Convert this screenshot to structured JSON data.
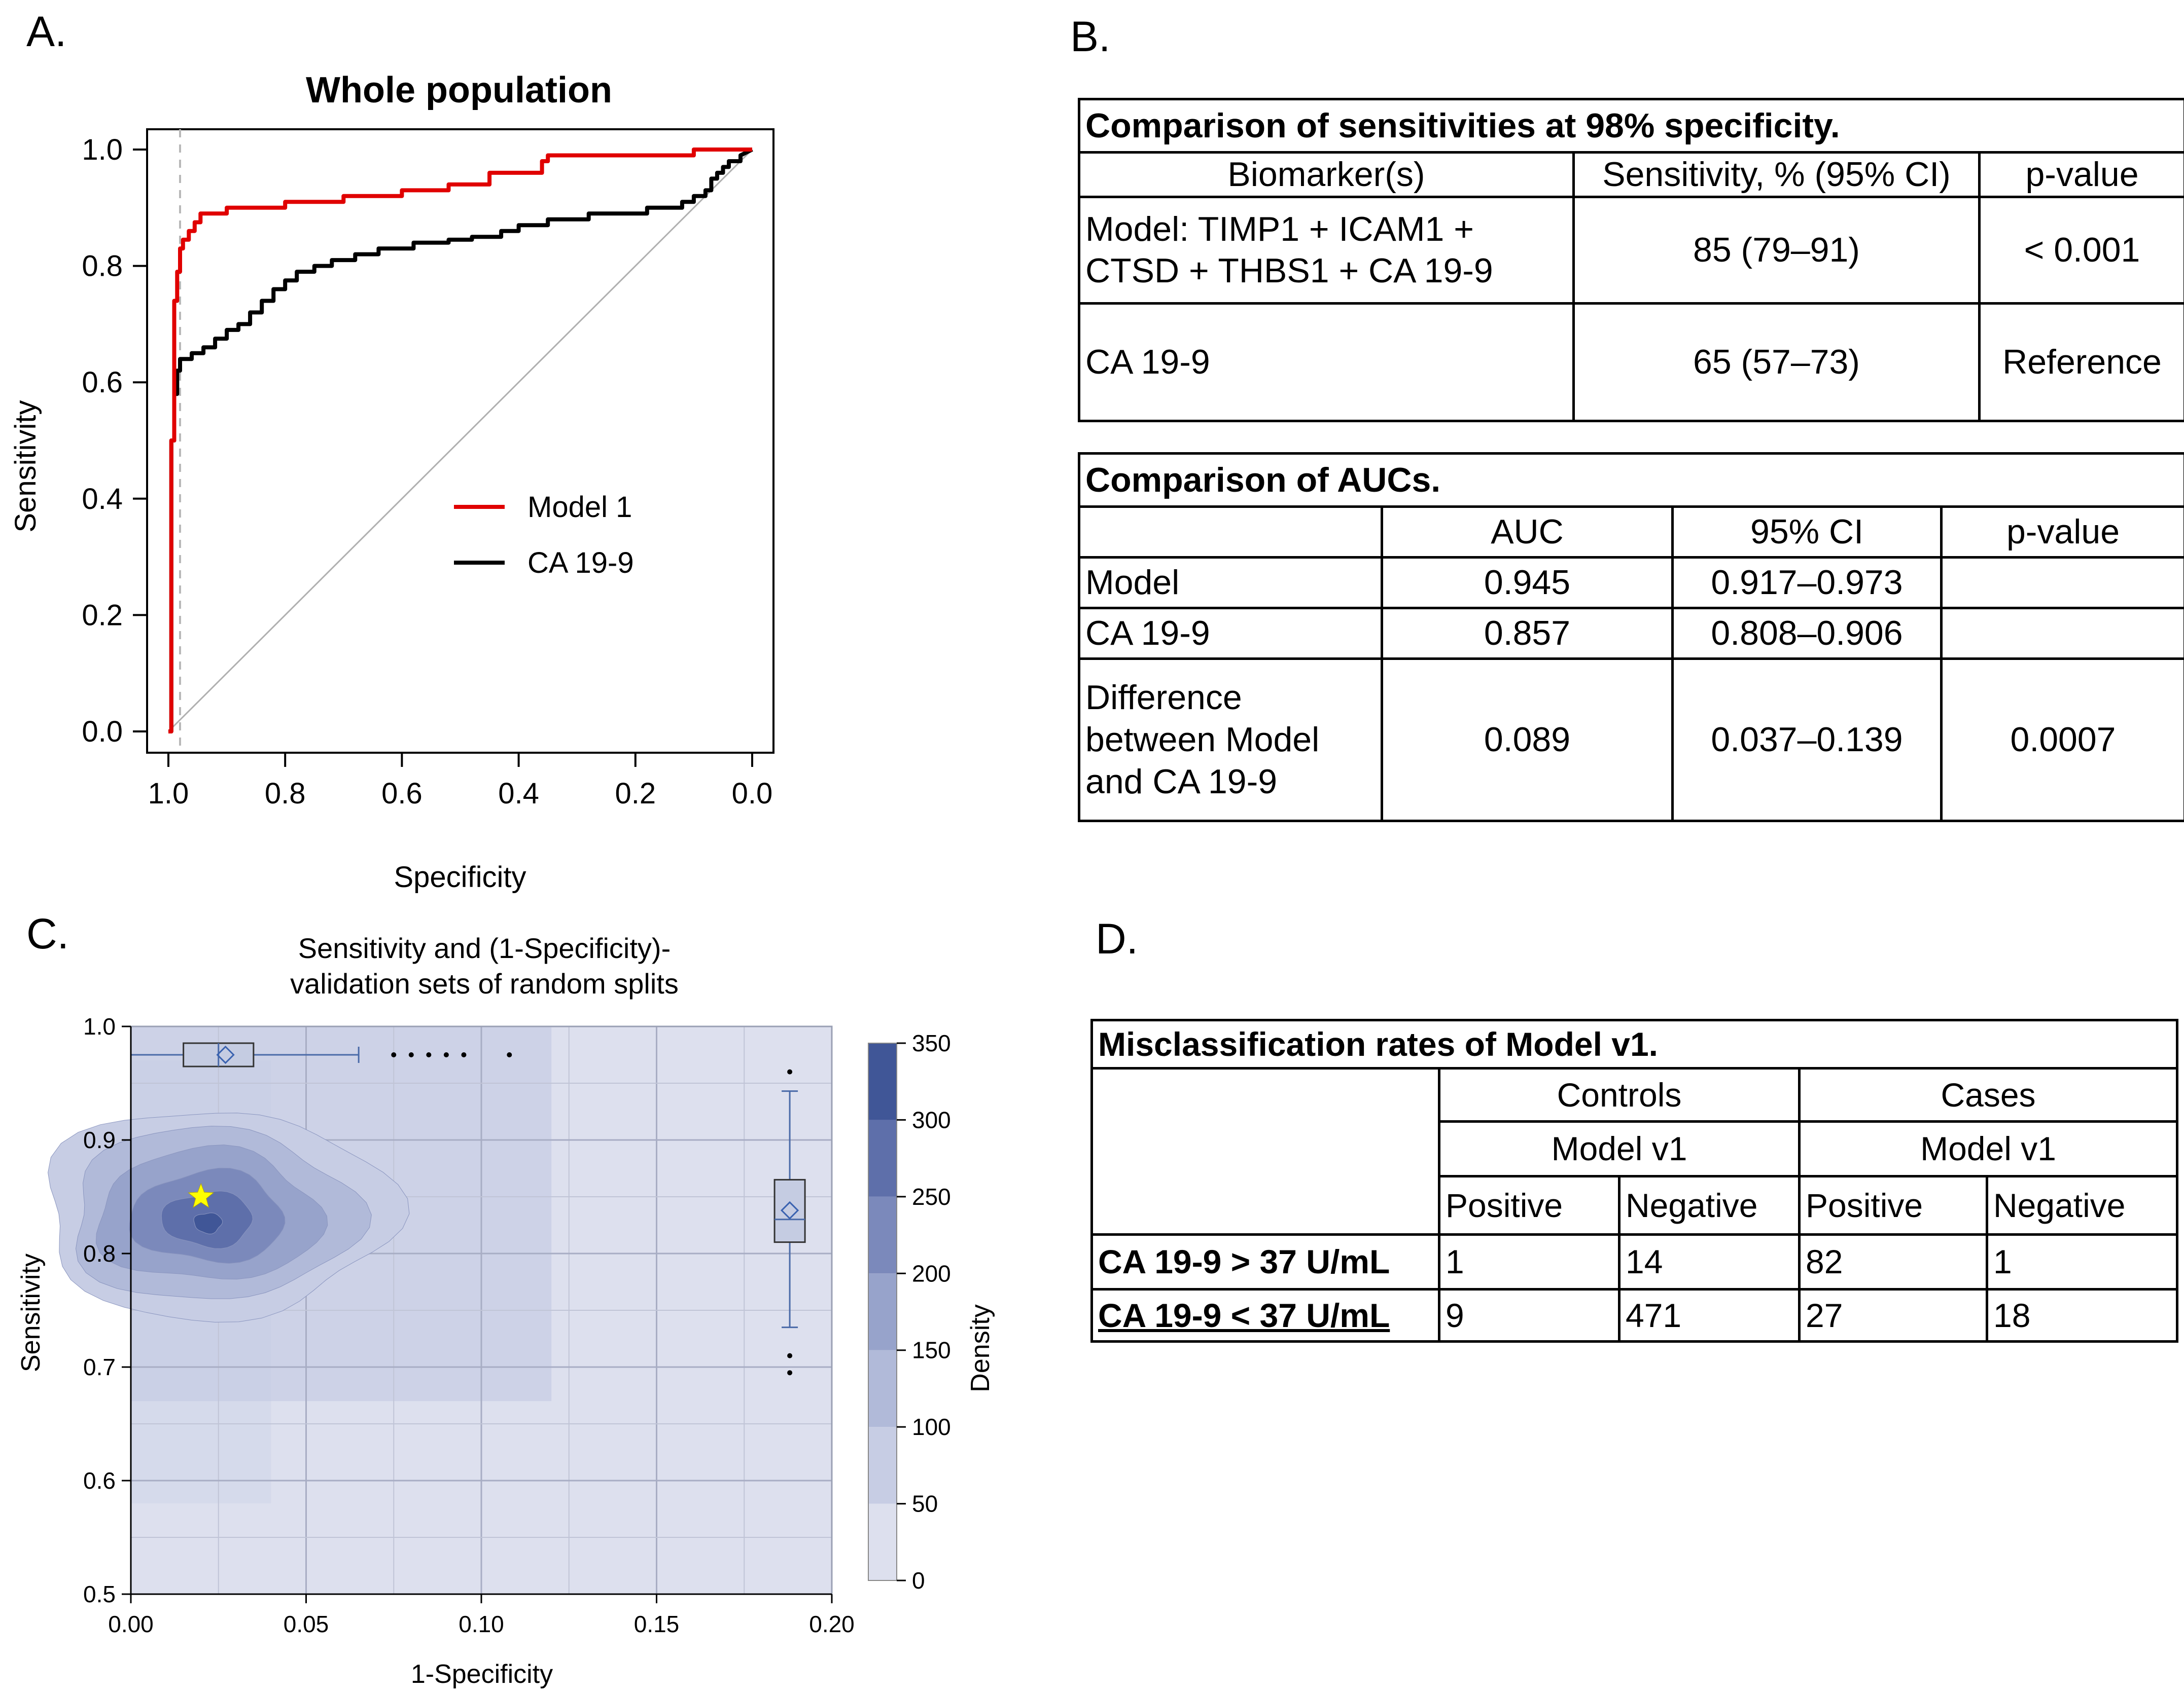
{
  "panels": {
    "a": "A.",
    "b": "B.",
    "c": "C.",
    "d": "D."
  },
  "chart_data": [
    {
      "id": "A",
      "type": "line",
      "title": "Whole population",
      "xlabel": "Specificity",
      "ylabel": "Sensitivity",
      "xlim": [
        1.0,
        0.0
      ],
      "ylim": [
        0.0,
        1.0
      ],
      "x_reversed": true,
      "xticks": [
        "1.0",
        "0.8",
        "0.6",
        "0.4",
        "0.2",
        "0.0"
      ],
      "yticks": [
        "0.0",
        "0.2",
        "0.4",
        "0.6",
        "0.8",
        "1.0"
      ],
      "reference_vline": 0.98,
      "legend": [
        "Model 1",
        "CA 19-9"
      ],
      "legend_position": "center-right",
      "colors": {
        "model": "#e00000",
        "ca199": "#000000",
        "diagonal": "#b0b0b0",
        "vline": "#b8b8b8"
      },
      "series": [
        {
          "name": "Model 1",
          "points": [
            [
              1.0,
              0.0
            ],
            [
              0.995,
              0.0
            ],
            [
              0.995,
              0.5
            ],
            [
              0.99,
              0.5
            ],
            [
              0.99,
              0.74
            ],
            [
              0.985,
              0.74
            ],
            [
              0.985,
              0.79
            ],
            [
              0.98,
              0.79
            ],
            [
              0.98,
              0.83
            ],
            [
              0.975,
              0.83
            ],
            [
              0.975,
              0.845
            ],
            [
              0.965,
              0.845
            ],
            [
              0.965,
              0.86
            ],
            [
              0.955,
              0.86
            ],
            [
              0.955,
              0.875
            ],
            [
              0.945,
              0.875
            ],
            [
              0.945,
              0.89
            ],
            [
              0.9,
              0.89
            ],
            [
              0.9,
              0.9
            ],
            [
              0.8,
              0.9
            ],
            [
              0.8,
              0.91
            ],
            [
              0.7,
              0.91
            ],
            [
              0.7,
              0.92
            ],
            [
              0.6,
              0.92
            ],
            [
              0.6,
              0.93
            ],
            [
              0.52,
              0.93
            ],
            [
              0.52,
              0.94
            ],
            [
              0.45,
              0.94
            ],
            [
              0.45,
              0.96
            ],
            [
              0.36,
              0.96
            ],
            [
              0.36,
              0.98
            ],
            [
              0.35,
              0.98
            ],
            [
              0.35,
              0.99
            ],
            [
              0.1,
              0.99
            ],
            [
              0.1,
              1.0
            ],
            [
              0.0,
              1.0
            ]
          ]
        },
        {
          "name": "CA 19-9",
          "points": [
            [
              1.0,
              0.0
            ],
            [
              0.995,
              0.0
            ],
            [
              0.995,
              0.5
            ],
            [
              0.99,
              0.5
            ],
            [
              0.99,
              0.58
            ],
            [
              0.985,
              0.58
            ],
            [
              0.985,
              0.62
            ],
            [
              0.98,
              0.62
            ],
            [
              0.98,
              0.64
            ],
            [
              0.96,
              0.64
            ],
            [
              0.96,
              0.65
            ],
            [
              0.94,
              0.65
            ],
            [
              0.94,
              0.66
            ],
            [
              0.92,
              0.66
            ],
            [
              0.92,
              0.675
            ],
            [
              0.9,
              0.675
            ],
            [
              0.9,
              0.69
            ],
            [
              0.88,
              0.69
            ],
            [
              0.88,
              0.7
            ],
            [
              0.86,
              0.7
            ],
            [
              0.86,
              0.72
            ],
            [
              0.84,
              0.72
            ],
            [
              0.84,
              0.74
            ],
            [
              0.82,
              0.74
            ],
            [
              0.82,
              0.76
            ],
            [
              0.8,
              0.76
            ],
            [
              0.8,
              0.775
            ],
            [
              0.78,
              0.775
            ],
            [
              0.78,
              0.79
            ],
            [
              0.75,
              0.79
            ],
            [
              0.75,
              0.8
            ],
            [
              0.72,
              0.8
            ],
            [
              0.72,
              0.81
            ],
            [
              0.68,
              0.81
            ],
            [
              0.68,
              0.82
            ],
            [
              0.64,
              0.82
            ],
            [
              0.64,
              0.83
            ],
            [
              0.58,
              0.83
            ],
            [
              0.58,
              0.84
            ],
            [
              0.52,
              0.84
            ],
            [
              0.52,
              0.845
            ],
            [
              0.48,
              0.845
            ],
            [
              0.48,
              0.85
            ],
            [
              0.43,
              0.85
            ],
            [
              0.43,
              0.86
            ],
            [
              0.4,
              0.86
            ],
            [
              0.4,
              0.87
            ],
            [
              0.35,
              0.87
            ],
            [
              0.35,
              0.88
            ],
            [
              0.28,
              0.88
            ],
            [
              0.28,
              0.89
            ],
            [
              0.18,
              0.89
            ],
            [
              0.18,
              0.9
            ],
            [
              0.12,
              0.9
            ],
            [
              0.12,
              0.91
            ],
            [
              0.1,
              0.91
            ],
            [
              0.1,
              0.92
            ],
            [
              0.08,
              0.92
            ],
            [
              0.08,
              0.93
            ],
            [
              0.07,
              0.93
            ],
            [
              0.07,
              0.95
            ],
            [
              0.06,
              0.95
            ],
            [
              0.06,
              0.96
            ],
            [
              0.05,
              0.96
            ],
            [
              0.05,
              0.97
            ],
            [
              0.04,
              0.97
            ],
            [
              0.04,
              0.98
            ],
            [
              0.02,
              0.98
            ],
            [
              0.02,
              0.99
            ],
            [
              0.0,
              1.0
            ]
          ]
        }
      ]
    },
    {
      "id": "C",
      "type": "heatmap",
      "title": "Sensitivity and (1-Specificity)-",
      "subtitle": "validation sets of random splits",
      "xlabel": "1-Specificity",
      "ylabel": "Sensitivity",
      "colorbar_label": "Density",
      "xlim": [
        0.0,
        0.2
      ],
      "ylim": [
        0.5,
        1.0
      ],
      "xticks": [
        "0.00",
        "0.05",
        "0.10",
        "0.15",
        "0.20"
      ],
      "yticks": [
        "0.5",
        "0.6",
        "0.7",
        "0.8",
        "0.9",
        "1.0"
      ],
      "colorbar_ticks": [
        "0",
        "50",
        "100",
        "150",
        "200",
        "250",
        "300",
        "350"
      ],
      "colorbar_range": [
        0,
        350
      ],
      "density_levels": [
        {
          "level": 0,
          "color": "#dde0ee"
        },
        {
          "level": 50,
          "color": "#c7cde4"
        },
        {
          "level": 100,
          "color": "#b1bad9"
        },
        {
          "level": 150,
          "color": "#97a3cb"
        },
        {
          "level": 200,
          "color": "#7b89bb"
        },
        {
          "level": 250,
          "color": "#5e6faa"
        },
        {
          "level": 300,
          "color": "#405697"
        }
      ],
      "density_peak": {
        "x": 0.022,
        "y": 0.83
      },
      "point_estimate_star": {
        "x": 0.02,
        "y": 0.85
      },
      "boxplot_x": {
        "min": 0.0,
        "q1": 0.015,
        "median": 0.025,
        "q3": 0.035,
        "mean": 0.027,
        "whisker_high": 0.065,
        "outliers": [
          0.075,
          0.08,
          0.085,
          0.09,
          0.095,
          0.108
        ]
      },
      "boxplot_y": {
        "min": 0.735,
        "q1": 0.81,
        "median": 0.83,
        "q3": 0.865,
        "mean": 0.838,
        "whisker_high": 0.943,
        "outliers": [
          0.71,
          0.695,
          0.96
        ]
      }
    }
  ],
  "table_b1": {
    "title": "Comparison of sensitivities at 98% specificity.",
    "headers": [
      "Biomarker(s)",
      "Sensitivity, % (95% CI)",
      "p-value"
    ],
    "rows": [
      {
        "biomarker_line1": "Model: TIMP1 + ICAM1 +",
        "biomarker_line2": "CTSD + THBS1 + CA 19-9",
        "sensitivity": "85 (79–91)",
        "p": "< 0.001"
      },
      {
        "biomarker_line1": "CA 19-9",
        "sensitivity": "65 (57–73)",
        "p": "Reference"
      }
    ]
  },
  "table_b2": {
    "title": "Comparison of AUCs.",
    "headers": [
      "",
      "AUC",
      "95% CI",
      "p-value"
    ],
    "rows": [
      {
        "label": "Model",
        "auc": "0.945",
        "ci": "0.917–0.973",
        "p": ""
      },
      {
        "label": "CA 19-9",
        "auc": "0.857",
        "ci": "0.808–0.906",
        "p": ""
      },
      {
        "label_line1": "Difference",
        "label_line2": "between Model",
        "label_line3": "and CA 19-9",
        "auc": "0.089",
        "ci": "0.037–0.139",
        "p": "0.0007"
      }
    ]
  },
  "table_d": {
    "title": "Misclassification rates of Model v1.",
    "group_controls": "Controls",
    "group_cases": "Cases",
    "model_label": "Model v1",
    "positive": "Positive",
    "negative": "Negative",
    "rows": [
      {
        "label": "CA 19-9 > 37 U/mL",
        "ctrl_pos": "1",
        "ctrl_neg": "14",
        "case_pos": "82",
        "case_neg": "1"
      },
      {
        "label": "CA 19-9 < 37 U/mL",
        "ctrl_pos": "9",
        "ctrl_neg": "471",
        "case_pos": "27",
        "case_neg": "18"
      }
    ]
  }
}
